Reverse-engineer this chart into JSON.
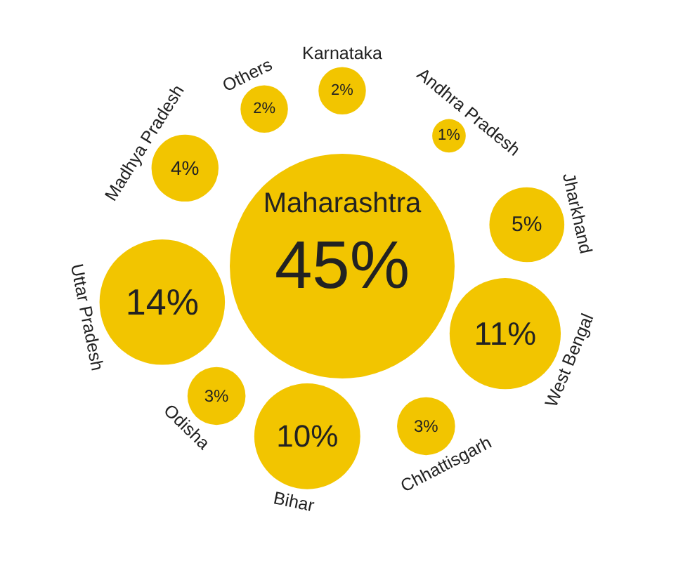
{
  "chart_data": {
    "type": "other",
    "categories": [
      "Maharashtra",
      "Karnataka",
      "Andhra Pradesh",
      "Jharkhand",
      "West Bengal",
      "Chhattisgarh",
      "Bihar",
      "Odisha",
      "Uttar Pradesh",
      "Madhya Pradesh",
      "Others"
    ],
    "values": [
      45,
      2,
      1,
      5,
      11,
      3,
      10,
      3,
      14,
      4,
      2
    ],
    "value_labels": [
      "45%",
      "2%",
      "1%",
      "5%",
      "11%",
      "3%",
      "10%",
      "3%",
      "14%",
      "4%",
      "2%"
    ],
    "color": "#f2c500"
  }
}
